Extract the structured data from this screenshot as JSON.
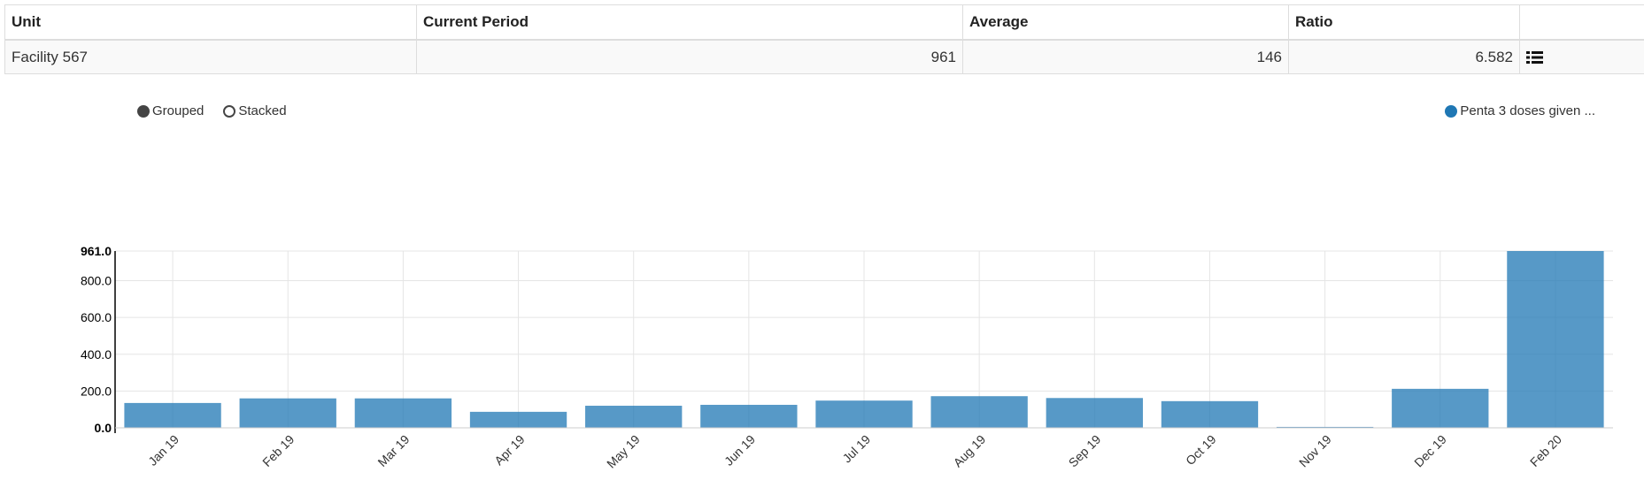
{
  "table": {
    "headers": [
      "Unit",
      "Current Period",
      "Average",
      "Ratio"
    ],
    "row": {
      "unit": "Facility 567",
      "current_period": "961",
      "average": "146",
      "ratio": "6.582"
    },
    "action_icon": "list-icon"
  },
  "controls": {
    "grouped_label": "Grouped",
    "stacked_label": "Stacked",
    "selected": "Grouped"
  },
  "legend": {
    "label": "Penta 3 doses given ...",
    "color": "#1f77b4"
  },
  "chart_data": {
    "type": "bar",
    "categories": [
      "Jan 19",
      "Feb 19",
      "Mar 19",
      "Apr 19",
      "May 19",
      "Jun 19",
      "Jul 19",
      "Aug 19",
      "Sep 19",
      "Oct 19",
      "Nov 19",
      "Dec 19",
      "Feb 20"
    ],
    "series": [
      {
        "name": "Penta 3 doses given ...",
        "values": [
          135,
          160,
          160,
          87,
          120,
          125,
          148,
          172,
          162,
          145,
          5,
          212,
          961
        ],
        "color": "#1f77b4"
      }
    ],
    "yticks": [
      "961.0",
      "800.0",
      "600.0",
      "400.0",
      "200.0",
      "0.0"
    ],
    "ylim": [
      0,
      961
    ],
    "grid": true,
    "legend_position": "top-right"
  }
}
